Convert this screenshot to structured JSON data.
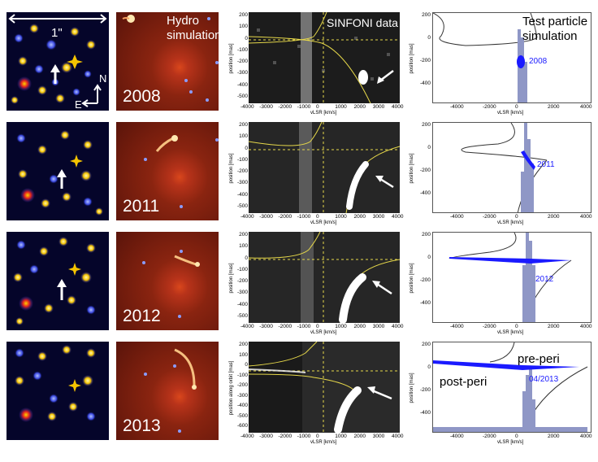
{
  "column_labels": {
    "hydro": "Hydro\nsimulation",
    "sinfoni": "SINFONI data",
    "test_particle": "Test particle\nsimulation"
  },
  "scale_bar": "1\"",
  "compass": {
    "north": "N",
    "east": "E"
  },
  "rows": [
    {
      "year": "2008",
      "tp_label": "2008"
    },
    {
      "year": "2011",
      "tp_label": "2011"
    },
    {
      "year": "2012",
      "tp_label": "2012"
    },
    {
      "year": "2013",
      "tp_label": "04/2013"
    }
  ],
  "pv": {
    "x_ticks": [
      "-4000",
      "-3000",
      "-2000",
      "-1000",
      "0",
      "1000",
      "2000",
      "3000",
      "4000"
    ],
    "y_ticks": [
      "200",
      "100",
      "0",
      "-100",
      "-200",
      "-300",
      "-400",
      "-500"
    ],
    "y_ticks_2013": [
      "200",
      "100",
      "0",
      "-100",
      "-200",
      "-300",
      "-400",
      "-500",
      "-600"
    ],
    "xlabel": "v",
    "xlabel_sub": "LSR",
    "xlabel_unit": "[km/s]",
    "ylabel": "position [mas]",
    "ylabel_2013": "position along orbit [mas]"
  },
  "tp": {
    "x_ticks": [
      "-4000",
      "-2000",
      "0",
      "2000",
      "4000"
    ],
    "y_ticks": [
      "200",
      "0",
      "-200",
      "-400"
    ],
    "xlabel": "v",
    "xlabel_sub": "LSR",
    "xlabel_unit": "[km/s]",
    "ylabel": "position [mas]",
    "annot_pre": "pre-peri",
    "annot_post": "post-peri"
  },
  "colors": {
    "orbit": "#e6d84a",
    "particles": "#1a1aff",
    "hist": "#8f97c6",
    "arrow": "#ffffff"
  }
}
